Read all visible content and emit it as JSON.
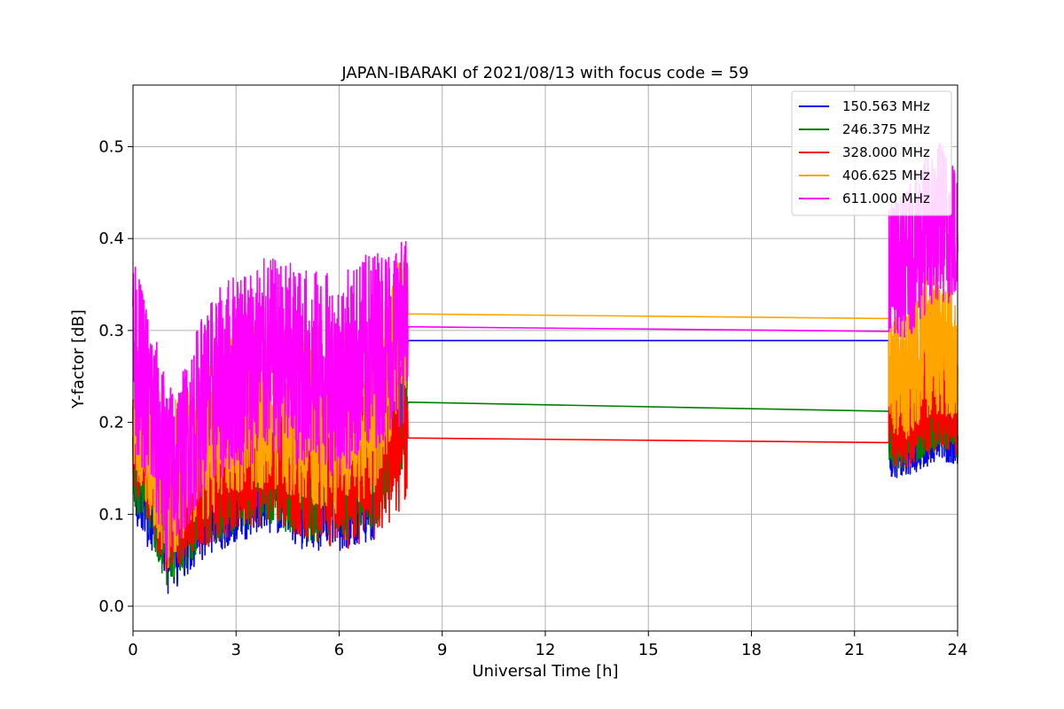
{
  "chart_data": {
    "type": "line",
    "title": "JAPAN-IBARAKI of 2021/08/13 with focus code = 59",
    "xlabel": "Universal Time [h]",
    "ylabel": "Y-factor [dB]",
    "xlim": [
      0,
      24
    ],
    "ylim": [
      -0.027,
      0.567
    ],
    "xticks": [
      0,
      3,
      6,
      9,
      12,
      15,
      18,
      21,
      24
    ],
    "yticks": [
      0.0,
      0.1,
      0.2,
      0.3,
      0.4,
      0.5
    ],
    "ytick_labels": [
      "0.0",
      "0.1",
      "0.2",
      "0.3",
      "0.4",
      "0.5"
    ],
    "grid": true,
    "legend_position": "top-right",
    "data_gap": [
      8.0,
      22.0
    ],
    "series": [
      {
        "name": "150.563 MHz",
        "color": "#0000ff",
        "x": [
          0,
          0.5,
          1,
          1.5,
          2,
          3,
          4,
          5,
          6,
          7,
          8,
          22,
          22.5,
          23,
          23.5,
          24
        ],
        "y": [
          0.14,
          0.12,
          0.08,
          0.09,
          0.11,
          0.12,
          0.13,
          0.12,
          0.12,
          0.13,
          0.289,
          0.289,
          0.17,
          0.18,
          0.19,
          0.18
        ],
        "spread": [
          0.05,
          0.06,
          0.07,
          0.06,
          0.06,
          0.05,
          0.05,
          0.06,
          0.06,
          0.06,
          0.05,
          0.03,
          0.03,
          0.03,
          0.03,
          0.03
        ]
      },
      {
        "name": "246.375 MHz",
        "color": "#008000",
        "x": [
          0,
          0.5,
          1,
          1.5,
          2,
          3,
          4,
          5,
          6,
          7,
          8,
          22,
          22.5,
          23,
          23.5,
          24
        ],
        "y": [
          0.17,
          0.14,
          0.1,
          0.11,
          0.13,
          0.14,
          0.15,
          0.14,
          0.14,
          0.15,
          0.222,
          0.212,
          0.18,
          0.19,
          0.2,
          0.19
        ],
        "spread": [
          0.06,
          0.07,
          0.08,
          0.07,
          0.07,
          0.06,
          0.06,
          0.07,
          0.07,
          0.07,
          0.06,
          0.03,
          0.03,
          0.03,
          0.03,
          0.03
        ]
      },
      {
        "name": "328.000 MHz",
        "color": "#ff0000",
        "x": [
          0,
          0.5,
          1,
          1.5,
          2,
          3,
          4,
          5,
          6,
          7,
          8,
          22,
          22.5,
          23,
          23.5,
          24
        ],
        "y": [
          0.19,
          0.15,
          0.11,
          0.12,
          0.14,
          0.16,
          0.17,
          0.16,
          0.15,
          0.16,
          0.183,
          0.178,
          0.2,
          0.22,
          0.23,
          0.21
        ],
        "spread": [
          0.07,
          0.07,
          0.08,
          0.07,
          0.08,
          0.08,
          0.08,
          0.09,
          0.09,
          0.09,
          0.07,
          0.05,
          0.05,
          0.06,
          0.06,
          0.05
        ]
      },
      {
        "name": "406.625 MHz",
        "color": "#ffa500",
        "x": [
          0,
          0.5,
          1,
          1.5,
          2,
          3,
          4,
          5,
          6,
          7,
          8,
          22,
          22.5,
          23,
          23.5,
          24
        ],
        "y": [
          0.23,
          0.18,
          0.13,
          0.15,
          0.18,
          0.21,
          0.22,
          0.21,
          0.2,
          0.22,
          0.318,
          0.313,
          0.25,
          0.28,
          0.29,
          0.27
        ],
        "spread": [
          0.08,
          0.08,
          0.09,
          0.08,
          0.09,
          0.09,
          0.09,
          0.1,
          0.1,
          0.1,
          0.08,
          0.06,
          0.07,
          0.08,
          0.08,
          0.07
        ]
      },
      {
        "name": "611.000 MHz",
        "color": "#ff00ff",
        "x": [
          0,
          0.5,
          1,
          1.5,
          2,
          3,
          4,
          5,
          6,
          7,
          8,
          22,
          22.5,
          23,
          23.5,
          24
        ],
        "y": [
          0.28,
          0.22,
          0.14,
          0.17,
          0.22,
          0.26,
          0.27,
          0.26,
          0.25,
          0.28,
          0.304,
          0.299,
          0.37,
          0.4,
          0.42,
          0.4
        ],
        "spread": [
          0.1,
          0.1,
          0.1,
          0.09,
          0.1,
          0.11,
          0.11,
          0.11,
          0.11,
          0.11,
          0.1,
          0.07,
          0.08,
          0.09,
          0.09,
          0.08
        ]
      }
    ]
  }
}
